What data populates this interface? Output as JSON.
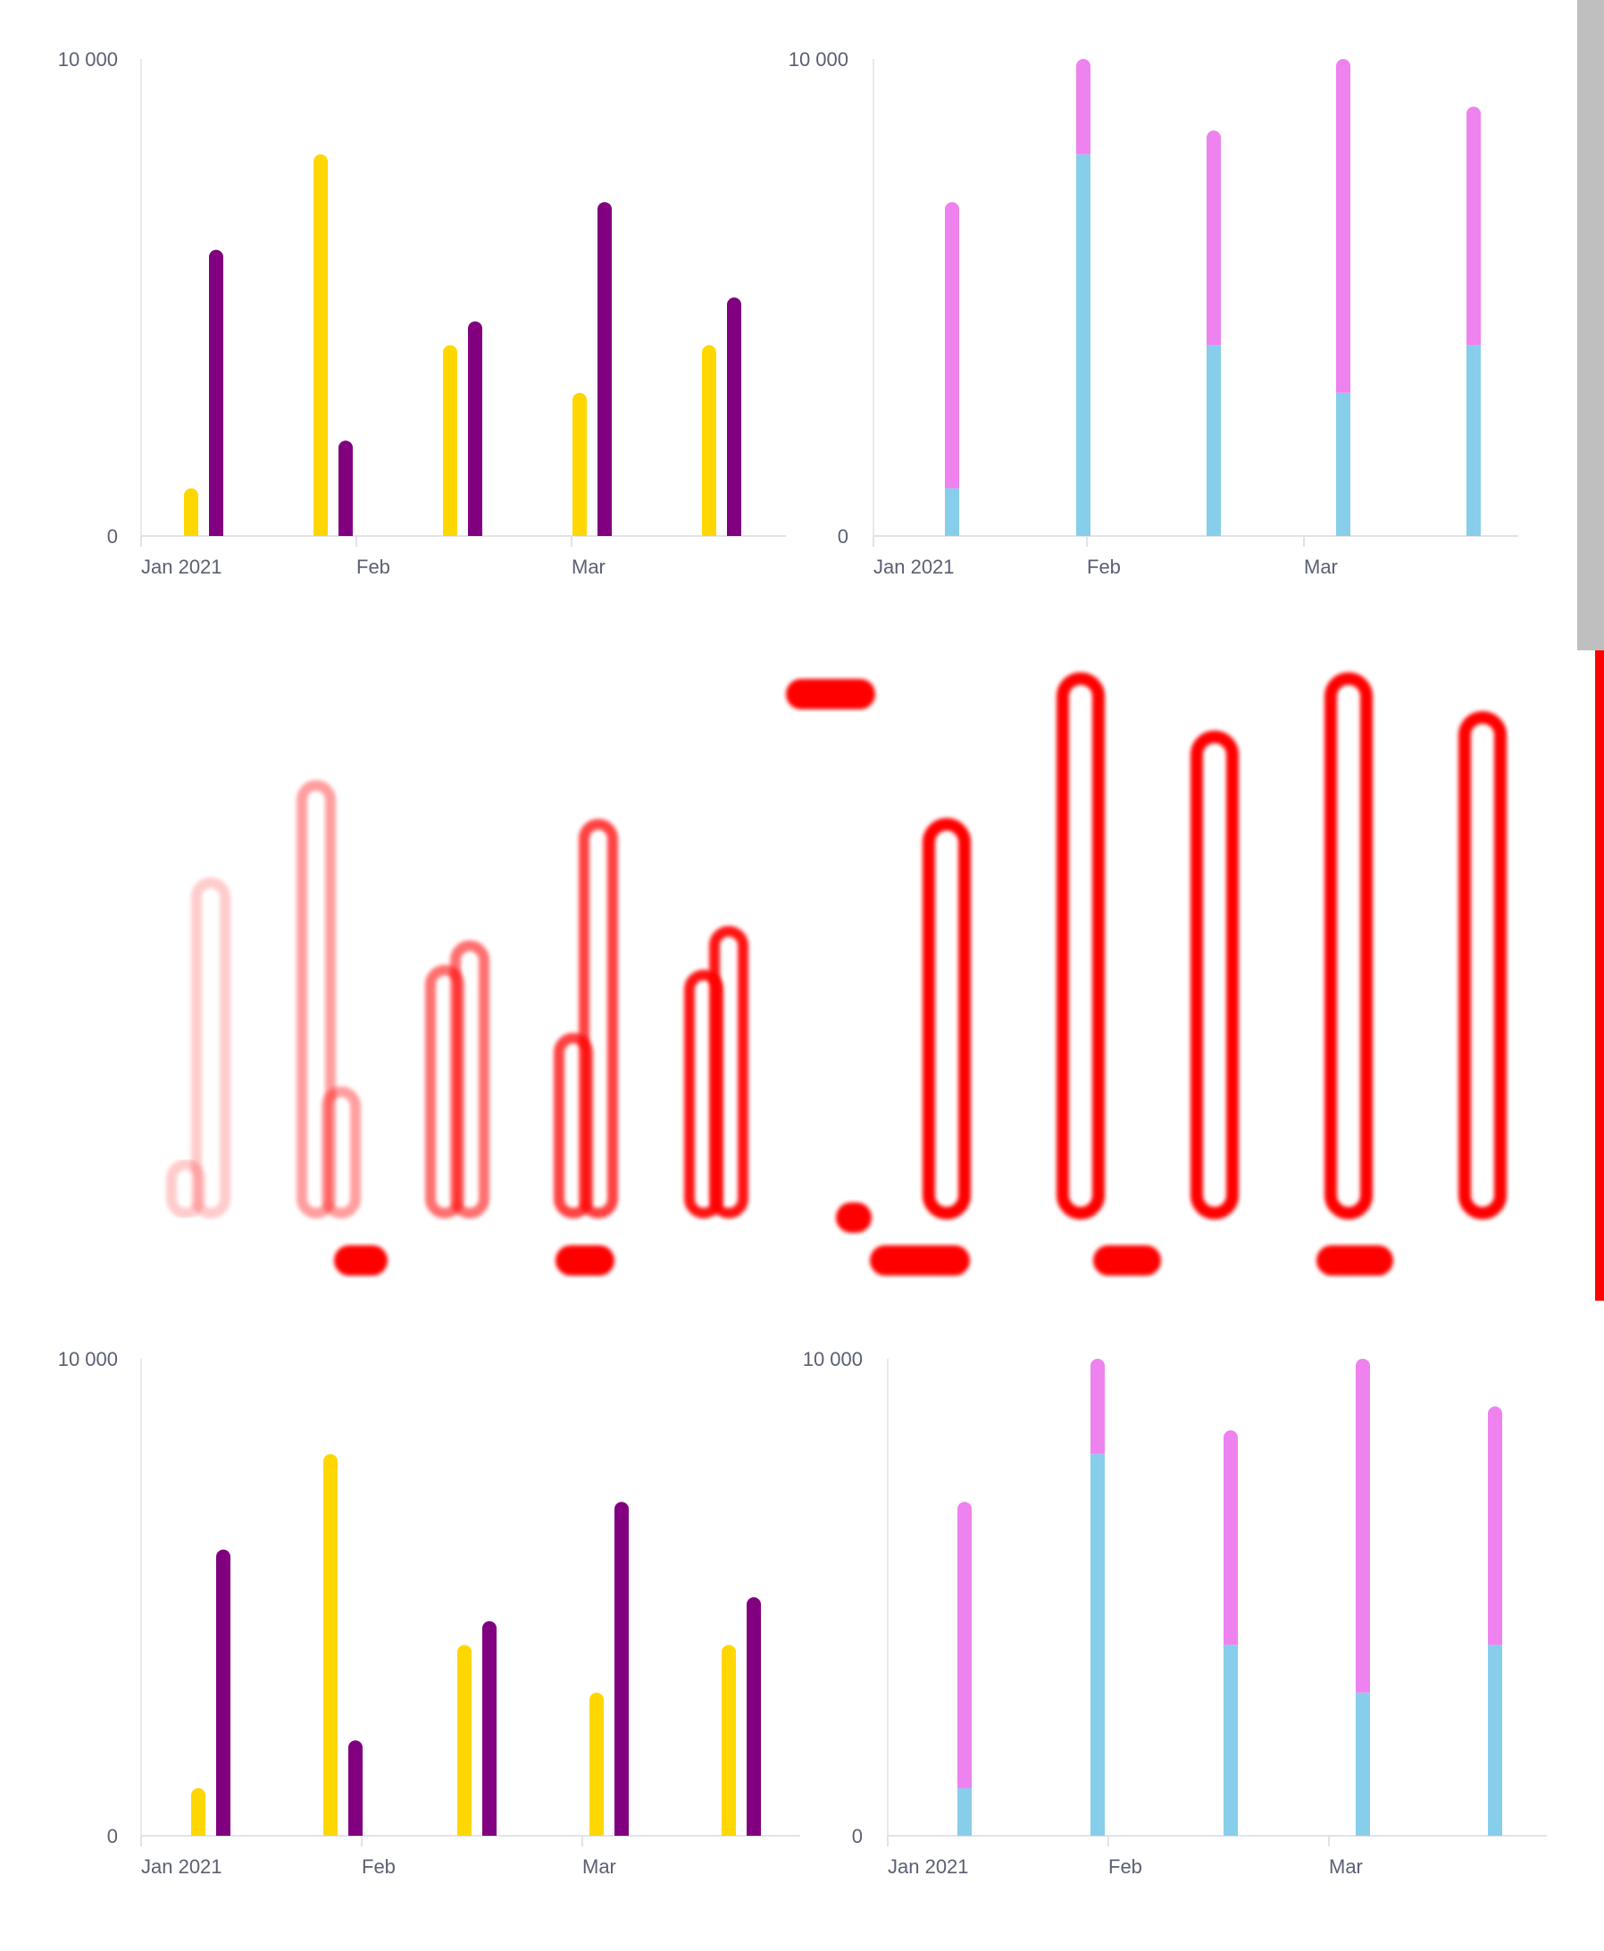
{
  "chart_data": [
    {
      "type": "bar",
      "title": "",
      "x_tick_labels": [
        "Jan 2021",
        "Feb",
        "Mar"
      ],
      "y_tick_labels": [
        "10 000",
        "0"
      ],
      "ylim": [
        0,
        10000
      ],
      "categories": [
        "1",
        "2",
        "3",
        "4",
        "5"
      ],
      "series": [
        {
          "color": "#ffd700",
          "values": [
            1000,
            8000,
            4000,
            3000,
            4000
          ]
        },
        {
          "color": "#800080",
          "values": [
            6000,
            2000,
            4500,
            7000,
            5000
          ]
        }
      ]
    },
    {
      "type": "bar",
      "stacked": true,
      "title": "",
      "x_tick_labels": [
        "Jan 2021",
        "Feb",
        "Mar"
      ],
      "y_tick_labels": [
        "10 000",
        "0"
      ],
      "ylim": [
        0,
        10000
      ],
      "categories": [
        "1",
        "2",
        "3",
        "4",
        "5"
      ],
      "series": [
        {
          "color": "#87ceeb",
          "values": [
            1000,
            8000,
            4000,
            3000,
            4000
          ]
        },
        {
          "color": "#ee82ee",
          "values": [
            6000,
            2000,
            4500,
            7000,
            5000
          ]
        }
      ]
    },
    {
      "type": "bar",
      "title": "",
      "x_tick_labels": [
        "Jan 2021",
        "Feb",
        "Mar"
      ],
      "y_tick_labels": [
        "10 000",
        "0"
      ],
      "ylim": [
        0,
        10000
      ],
      "categories": [
        "1",
        "2",
        "3",
        "4",
        "5"
      ],
      "series": [
        {
          "color": "#ffd700",
          "values": [
            1000,
            8000,
            4000,
            3000,
            4000
          ]
        },
        {
          "color": "#800080",
          "values": [
            6000,
            2000,
            4500,
            7000,
            5000
          ]
        }
      ]
    },
    {
      "type": "bar",
      "stacked": true,
      "title": "",
      "x_tick_labels": [
        "Jan 2021",
        "Feb",
        "Mar"
      ],
      "y_tick_labels": [
        "10 000",
        "0"
      ],
      "ylim": [
        0,
        10000
      ],
      "categories": [
        "1",
        "2",
        "3",
        "4",
        "5"
      ],
      "series": [
        {
          "color": "#87ceeb",
          "values": [
            1000,
            8000,
            4000,
            3000,
            4000
          ]
        },
        {
          "color": "#ee82ee",
          "values": [
            6000,
            2000,
            4500,
            7000,
            5000
          ]
        }
      ]
    }
  ],
  "diff_overlay": {
    "color": "#ff0000",
    "grouped_heights": [
      [
        1000,
        6800
      ],
      [
        8800,
        2500
      ],
      [
        5000,
        5500
      ],
      [
        3600,
        8000
      ],
      [
        4900,
        5800
      ]
    ],
    "stacked_heights": [
      8000,
      11000,
      9800,
      11000,
      10200
    ]
  }
}
